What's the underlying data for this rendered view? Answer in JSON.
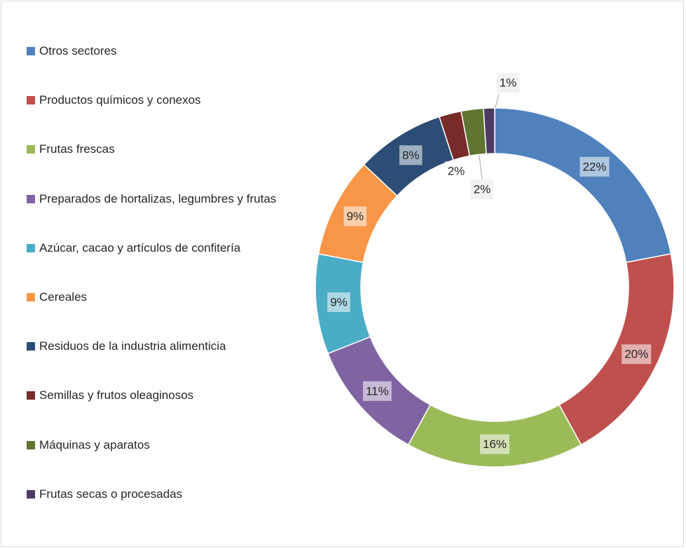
{
  "chart_data": {
    "type": "donut",
    "categories": [
      "Otros sectores",
      "Productos químicos y conexos",
      "Frutas frescas",
      "Preparados de hortalizas, legumbres y frutas",
      "Azúcar, cacao y artículos de confitería",
      "Cereales",
      "Residuos de la industria alimenticia",
      "Semillas y frutos oleaginosos",
      "Máquinas y aparatos",
      "Frutas secas o procesadas"
    ],
    "values": [
      22,
      20,
      16,
      11,
      9,
      9,
      8,
      2,
      2,
      1
    ],
    "value_labels": [
      "22%",
      "20%",
      "16%",
      "11%",
      "9%",
      "9%",
      "8%",
      "2%",
      "2%",
      "1%"
    ],
    "colors": [
      "#4f81bd",
      "#c0504d",
      "#9bbb59",
      "#8064a2",
      "#4bacc6",
      "#f79646",
      "#2c4d75",
      "#772c2a",
      "#5f7530",
      "#4d3b62"
    ],
    "legend": "left"
  }
}
